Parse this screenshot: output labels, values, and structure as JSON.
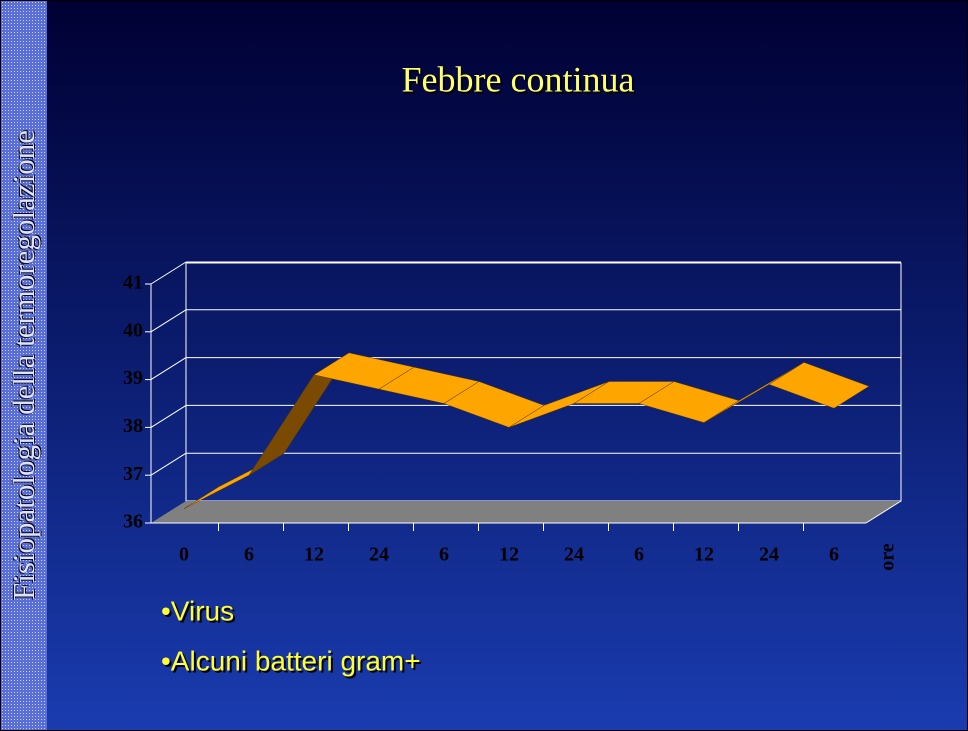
{
  "side_title": "Fisiopatologia della termoregolazione",
  "chart_data": {
    "type": "line",
    "title": "Febbre continua",
    "categories": [
      "0",
      "6",
      "12",
      "24",
      "6",
      "12",
      "24",
      "6",
      "12",
      "24",
      "6"
    ],
    "x_label": "ore",
    "values": [
      36.3,
      37.0,
      39.1,
      38.8,
      38.5,
      38.0,
      38.5,
      38.5,
      38.1,
      38.9,
      38.4
    ],
    "color": "#ffa500",
    "ylim": [
      36,
      41
    ],
    "yticks": [
      36,
      37,
      38,
      39,
      40,
      41
    ],
    "grid": true
  },
  "bullets": [
    "•Virus",
    "•Alcuni batteri gram+"
  ]
}
